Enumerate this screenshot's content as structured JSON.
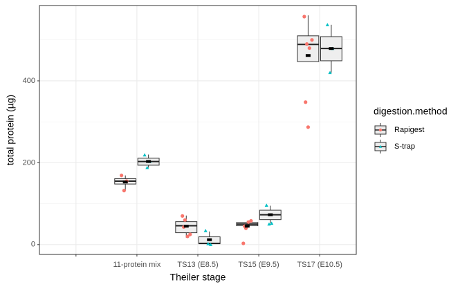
{
  "chart_data": {
    "type": "box",
    "x_label": "Theiler stage",
    "y_label": "total protein (µg)",
    "categories": [
      null,
      "11-protein mix",
      "TS13  (E8.5)",
      "TS15  (E9.5)",
      "TS17 (E10.5)"
    ],
    "ylim": [
      -24,
      584
    ],
    "yticks": [
      0,
      200,
      400
    ],
    "minor_yticks": [
      100,
      300,
      500
    ],
    "grid": true,
    "legend_title": "digestion.method",
    "legend_position": "right",
    "series": [
      {
        "name": "Rapigest",
        "color": "#F8766D",
        "shape": "circle",
        "boxes": [
          null,
          {
            "min": 132,
            "q1": 148,
            "median": 155,
            "q3": 161,
            "max": 169,
            "mean": 153,
            "points": [
              169,
              132,
              155
            ]
          },
          {
            "min": 17,
            "q1": 29,
            "median": 46,
            "q3": 56,
            "max": 71,
            "mean": 45,
            "points": [
              70,
              60,
              20,
              25,
              43
            ]
          },
          {
            "min": 40,
            "q1": 46,
            "median": 50,
            "q3": 54,
            "max": 58,
            "mean": 45,
            "points": [
              3,
              40,
              55,
              58,
              45
            ]
          },
          {
            "min": 447,
            "q1": 447,
            "median": 489,
            "q3": 510,
            "max": 560,
            "mean": 462,
            "points": [
              557,
              490,
              480,
              500,
              348,
              287
            ]
          }
        ]
      },
      {
        "name": "S-trap",
        "color": "#00BFC4",
        "shape": "triangle",
        "boxes": [
          null,
          {
            "min": 188,
            "q1": 194,
            "median": 203,
            "q3": 211,
            "max": 220,
            "mean": 203,
            "points": [
              219,
              188,
              203
            ]
          },
          {
            "min": 0,
            "q1": 2,
            "median": 3,
            "q3": 19,
            "max": 32,
            "mean": 12,
            "points": [
              34,
              2,
              0
            ]
          },
          {
            "min": 52,
            "q1": 61,
            "median": 73,
            "q3": 84,
            "max": 95,
            "mean": 73,
            "points": [
              96,
              50,
              52
            ]
          },
          {
            "min": 420,
            "q1": 449,
            "median": 479,
            "q3": 508,
            "max": 537,
            "mean": 479,
            "points": [
              537,
              420,
              479
            ]
          }
        ]
      }
    ]
  }
}
